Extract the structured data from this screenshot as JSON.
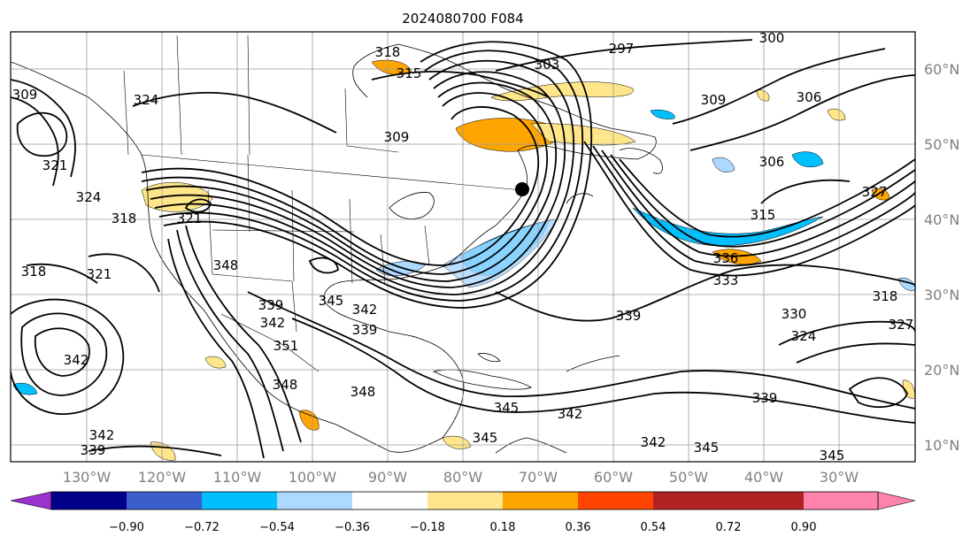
{
  "map": {
    "title": "2024080700 F084",
    "lon_labels": [
      "130°W",
      "120°W",
      "110°W",
      "100°W",
      "90°W",
      "80°W",
      "70°W",
      "60°W",
      "50°W",
      "40°W",
      "30°W"
    ],
    "lat_labels": [
      "60°N",
      "50°N",
      "40°N",
      "30°N",
      "20°N",
      "10°N"
    ],
    "contour_labels": [
      "318",
      "315",
      "297",
      "303",
      "300",
      "309",
      "309",
      "306",
      "306",
      "324",
      "309",
      "315",
      "327",
      "321",
      "318",
      "321",
      "324",
      "321",
      "348",
      "336",
      "333",
      "318",
      "318",
      "339",
      "342",
      "345",
      "342",
      "339",
      "339",
      "351",
      "342",
      "348",
      "348",
      "345",
      "342",
      "345",
      "342",
      "345",
      "345",
      "339",
      "342",
      "339",
      "330",
      "324",
      "327"
    ],
    "colorbar": {
      "tick_labels": [
        "−0.90",
        "−0.72",
        "−0.54",
        "−0.36",
        "−0.18",
        "0.18",
        "0.36",
        "0.54",
        "0.72",
        "0.90"
      ],
      "colors": [
        "#9a32cd",
        "#00008b",
        "#3a5fcd",
        "#00bfff",
        "#add8ff",
        "#ffffff",
        "#ffe68a",
        "#ffa500",
        "#ff4500",
        "#b22222",
        "#ff82ab"
      ]
    },
    "shading_colors": {
      "blue_light": "#add8ff",
      "blue": "#00bfff",
      "yellow": "#ffe68a",
      "orange": "#ffa500"
    }
  }
}
